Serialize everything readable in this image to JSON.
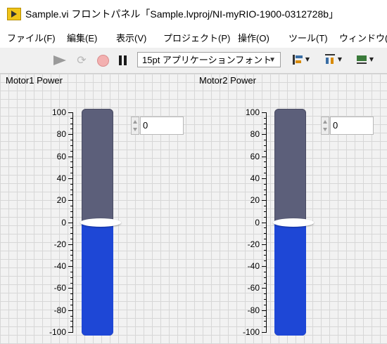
{
  "window": {
    "title": "Sample.vi フロントパネル「Sample.lvproj/NI-myRIO-1900-0312728b」"
  },
  "menu": {
    "items": [
      "ファイル(F)",
      "編集(E)",
      "表示(V)",
      "プロジェクト(P)",
      "操作(O)",
      "ツール(T)",
      "ウィンドウ(W"
    ]
  },
  "toolbar": {
    "font_select": "15pt アプリケーションフォント",
    "icons": [
      "run-arrow-icon",
      "run-continuously-icon",
      "abort-icon",
      "pause-icon",
      "align-objects-icon",
      "distribute-objects-icon",
      "resize-objects-icon"
    ]
  },
  "slides": [
    {
      "label": "Motor1 Power",
      "value": 0,
      "scale_min": -100,
      "scale_max": 100,
      "scale_labels": [
        "100-",
        "80-",
        "60-",
        "40-",
        "20-",
        "0-",
        "-20-",
        "-40-",
        "-60-",
        "-80-",
        "-100-"
      ],
      "fill_color": "#1e47d6",
      "track_color": "#5c5f7a"
    },
    {
      "label": "Motor2 Power",
      "value": 0,
      "scale_min": -100,
      "scale_max": 100,
      "scale_labels": [
        "100-",
        "80-",
        "60-",
        "40-",
        "20-",
        "0-",
        "-20-",
        "-40-",
        "-60-",
        "-80-",
        "-100-"
      ],
      "fill_color": "#1e47d6",
      "track_color": "#5c5f7a"
    }
  ]
}
